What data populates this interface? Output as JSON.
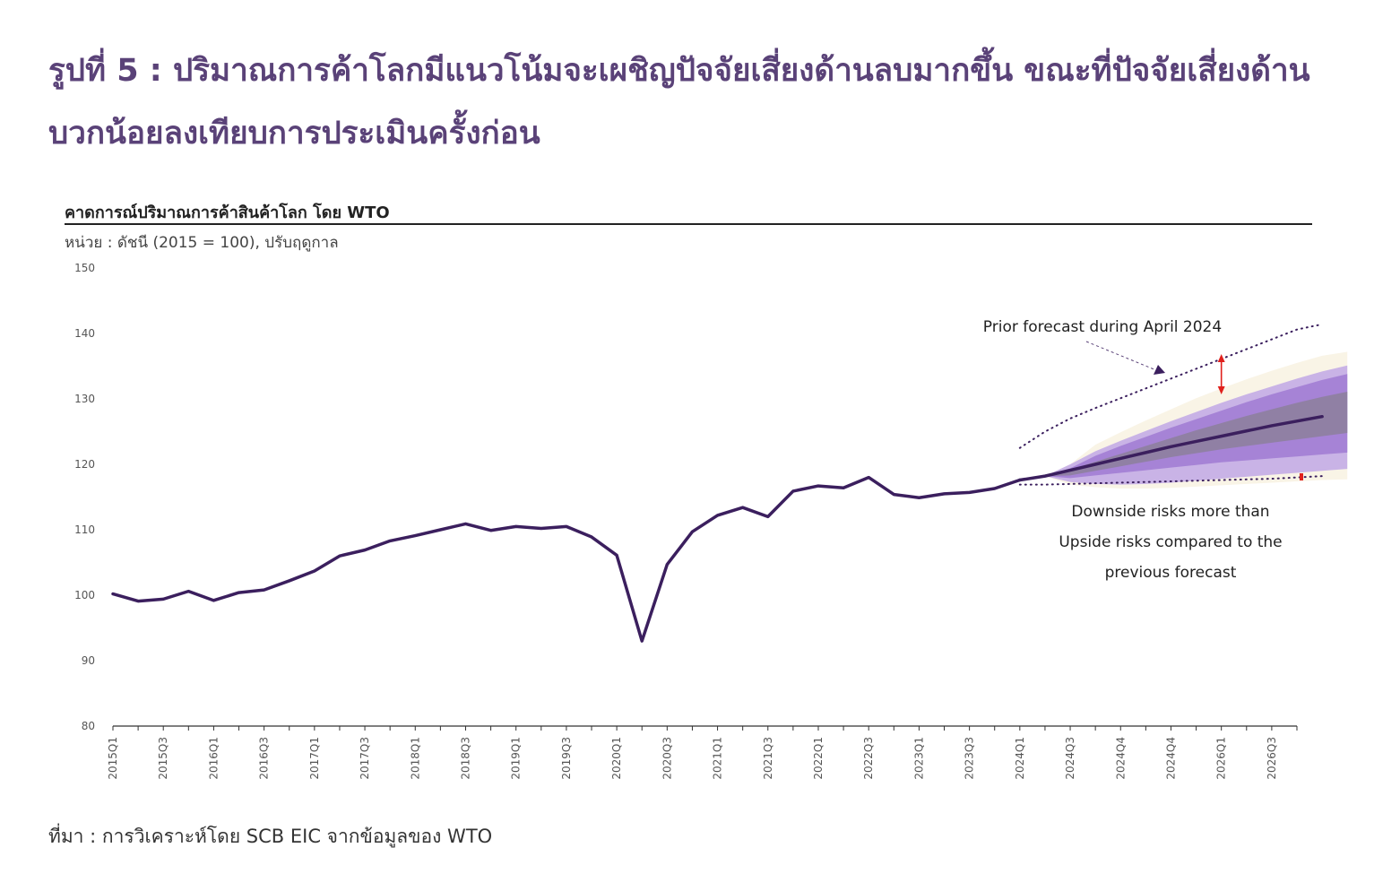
{
  "figure": {
    "title": "รูปที่ 5 : ปริมาณการค้าโลกมีแนวโน้มจะเผชิญปัจจัยเสี่ยงด้านลบมากขึ้น ขณะที่ปัจจัยเสี่ยงด้านบวกน้อยลงเทียบการประเมินครั้งก่อน",
    "source": "ที่มา : การวิเคราะห์โดย SCB EIC จากข้อมูลของ WTO"
  },
  "chart_data": {
    "type": "line",
    "title": "คาดการณ์ปริมาณการค้าสินค้าโลก โดย WTO",
    "subtitle": "หน่วย : ดัชนี (2015 = 100), ปรับฤดูกาล",
    "xlabel": "",
    "ylabel": "",
    "ylim": [
      80,
      150
    ],
    "yticks": [
      80,
      90,
      100,
      110,
      120,
      130,
      140,
      150
    ],
    "x_tick_labels": [
      "2015Q1",
      "2015Q3",
      "2016Q1",
      "2016Q3",
      "2017Q1",
      "2017Q3",
      "2018Q1",
      "2018Q3",
      "2019Q1",
      "2019Q3",
      "2020Q1",
      "2020Q3",
      "2021Q1",
      "2021Q3",
      "2022Q1",
      "2022Q3",
      "2023Q1",
      "2023Q3",
      "2024Q1",
      "2024Q3",
      "2024Q4",
      "2024Q4",
      "2026Q1",
      "2026Q3"
    ],
    "num_periods": 48,
    "series": [
      {
        "name": "actual",
        "color": "#3b1f5e",
        "values": [
          100.2,
          99.1,
          99.4,
          100.6,
          99.2,
          100.4,
          100.8,
          102.2,
          103.7,
          106.0,
          106.9,
          108.3,
          109.1,
          110.0,
          110.9,
          109.9,
          110.5,
          110.2,
          110.5,
          108.9,
          106.1,
          93.0,
          104.7,
          109.7,
          112.2,
          113.4,
          112.0,
          115.9,
          116.7,
          116.4,
          118.0,
          115.4,
          114.9,
          115.5,
          115.7,
          116.3,
          117.6
        ]
      },
      {
        "name": "forecast_median",
        "color": "#3b1f5e",
        "start_index": 36,
        "values": [
          117.6,
          118.2,
          119.1,
          120.0,
          120.9,
          121.8,
          122.7,
          123.5,
          124.3,
          125.1,
          125.9,
          126.6,
          127.3
        ]
      },
      {
        "name": "Prior forecast during April 2024",
        "style": "dotted",
        "color": "#3b1f5e",
        "start_index": 36,
        "values": [
          122.5,
          125.0,
          127.0,
          128.6,
          130.1,
          131.6,
          133.1,
          134.6,
          136.1,
          137.6,
          139.1,
          140.6,
          141.4
        ]
      },
      {
        "name": "lower_prior_bound",
        "style": "dotted",
        "color": "#3b1f5e",
        "start_index": 36,
        "values": [
          116.9,
          116.9,
          117.0,
          117.1,
          117.2,
          117.3,
          117.4,
          117.5,
          117.6,
          117.7,
          117.8,
          118.0,
          118.2
        ]
      }
    ],
    "bands": [
      {
        "name": "outer",
        "color": "#f9f4e6",
        "start_index": 37,
        "lower": [
          118.2,
          116.9,
          116.5,
          116.3,
          116.3,
          116.4,
          116.6,
          116.8,
          117.0,
          117.2,
          117.4,
          117.6,
          117.7
        ],
        "upper": [
          118.2,
          120.0,
          123.0,
          124.9,
          126.7,
          128.4,
          130.1,
          131.6,
          133.0,
          134.3,
          135.5,
          136.6,
          137.2
        ]
      },
      {
        "name": "mid",
        "color": "#c9b3e6",
        "start_index": 37,
        "lower": [
          118.2,
          117.3,
          117.0,
          116.9,
          117.0,
          117.2,
          117.5,
          117.8,
          118.1,
          118.4,
          118.7,
          119.0,
          119.3
        ],
        "upper": [
          118.2,
          120.0,
          122.0,
          123.6,
          125.1,
          126.6,
          128.0,
          129.4,
          130.7,
          131.9,
          133.1,
          134.2,
          135.1
        ]
      },
      {
        "name": "inner",
        "color": "#a683d6",
        "start_index": 37,
        "lower": [
          118.2,
          117.9,
          118.3,
          118.7,
          119.1,
          119.5,
          119.9,
          120.3,
          120.6,
          120.9,
          121.2,
          121.5,
          121.8
        ],
        "upper": [
          118.2,
          119.4,
          121.3,
          122.8,
          124.2,
          125.6,
          126.9,
          128.2,
          129.5,
          130.7,
          131.8,
          132.9,
          133.8
        ]
      },
      {
        "name": "core",
        "color": "#9080a4",
        "start_index": 37,
        "lower": [
          118.2,
          118.3,
          119.0,
          119.7,
          120.4,
          121.1,
          121.7,
          122.3,
          122.8,
          123.3,
          123.8,
          124.3,
          124.8
        ],
        "upper": [
          118.2,
          119.2,
          120.4,
          121.6,
          122.8,
          124.0,
          125.2,
          126.3,
          127.4,
          128.4,
          129.4,
          130.3,
          131.1
        ]
      }
    ],
    "annotations": {
      "prior_forecast": "Prior forecast during April 2024",
      "downside_1": "Downside risks more than",
      "downside_2": "Upside risks compared to the",
      "downside_3": "previous forecast"
    },
    "grid": false,
    "legend": "none"
  },
  "colors": {
    "title": "#5a4278",
    "line": "#3b1f5e",
    "risk_arrow": "#e0201c",
    "axis": "#333333"
  }
}
